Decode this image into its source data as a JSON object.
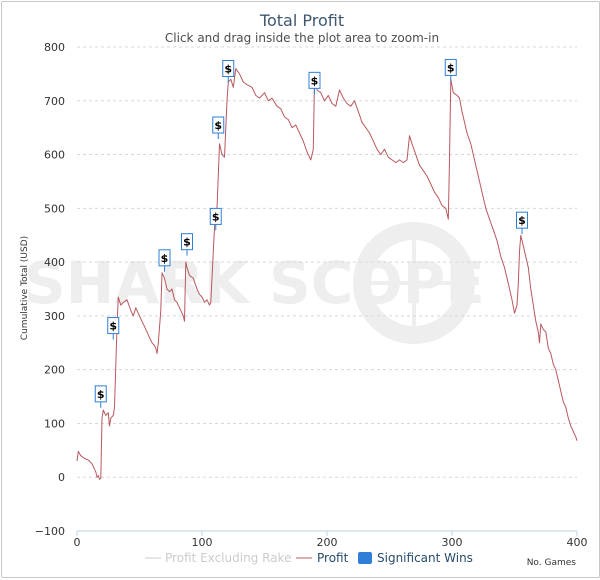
{
  "chart_data": {
    "type": "line",
    "title": "Total Profit",
    "subtitle": "Click and drag inside the plot area to zoom-in",
    "ylabel": "Cumulative Total (USD)",
    "xlabel": "No. Games",
    "xlim": [
      0,
      400
    ],
    "ylim": [
      -100,
      800
    ],
    "x_ticks": [
      "0",
      "100",
      "200",
      "300",
      "400"
    ],
    "y_ticks": [
      "−100",
      "0",
      "100",
      "200",
      "300",
      "400",
      "500",
      "600",
      "700",
      "800"
    ],
    "grid": "horizontal dashed",
    "legend_position": "bottom",
    "watermark": "SHARK SCOPE",
    "series": [
      {
        "name": "Profit Excluding Rake",
        "color": "#cccccc",
        "visible": false,
        "points": []
      },
      {
        "name": "Profit",
        "color": "#b9585d",
        "points": [
          [
            0,
            30
          ],
          [
            1,
            48
          ],
          [
            3,
            40
          ],
          [
            6,
            35
          ],
          [
            9,
            32
          ],
          [
            12,
            25
          ],
          [
            14,
            15
          ],
          [
            15,
            10
          ],
          [
            16,
            0
          ],
          [
            17,
            3
          ],
          [
            18,
            -4
          ],
          [
            19,
            -2
          ],
          [
            20,
            110
          ],
          [
            21,
            125
          ],
          [
            23,
            115
          ],
          [
            25,
            120
          ],
          [
            26,
            95
          ],
          [
            27,
            110
          ],
          [
            29,
            115
          ],
          [
            30,
            130
          ],
          [
            32,
            280
          ],
          [
            33,
            335
          ],
          [
            35,
            320
          ],
          [
            37,
            325
          ],
          [
            40,
            330
          ],
          [
            43,
            310
          ],
          [
            45,
            300
          ],
          [
            47,
            315
          ],
          [
            50,
            300
          ],
          [
            52,
            290
          ],
          [
            55,
            275
          ],
          [
            58,
            260
          ],
          [
            60,
            250
          ],
          [
            62,
            245
          ],
          [
            63,
            240
          ],
          [
            64,
            230
          ],
          [
            65,
            250
          ],
          [
            67,
            310
          ],
          [
            68,
            380
          ],
          [
            70,
            370
          ],
          [
            72,
            350
          ],
          [
            74,
            345
          ],
          [
            76,
            350
          ],
          [
            78,
            330
          ],
          [
            80,
            325
          ],
          [
            82,
            315
          ],
          [
            84,
            305
          ],
          [
            85,
            300
          ],
          [
            86,
            290
          ],
          [
            87,
            400
          ],
          [
            88,
            390
          ],
          [
            90,
            375
          ],
          [
            93,
            370
          ],
          [
            96,
            350
          ],
          [
            98,
            340
          ],
          [
            100,
            335
          ],
          [
            102,
            325
          ],
          [
            104,
            330
          ],
          [
            106,
            320
          ],
          [
            107,
            325
          ],
          [
            110,
            465
          ],
          [
            112,
            500
          ],
          [
            114,
            620
          ],
          [
            116,
            600
          ],
          [
            118,
            595
          ],
          [
            120,
            700
          ],
          [
            121,
            735
          ],
          [
            123,
            740
          ],
          [
            125,
            725
          ],
          [
            127,
            760
          ],
          [
            130,
            750
          ],
          [
            133,
            735
          ],
          [
            136,
            730
          ],
          [
            140,
            725
          ],
          [
            143,
            710
          ],
          [
            146,
            705
          ],
          [
            150,
            715
          ],
          [
            153,
            700
          ],
          [
            156,
            705
          ],
          [
            160,
            690
          ],
          [
            163,
            685
          ],
          [
            166,
            670
          ],
          [
            169,
            665
          ],
          [
            172,
            650
          ],
          [
            175,
            655
          ],
          [
            178,
            640
          ],
          [
            181,
            625
          ],
          [
            184,
            605
          ],
          [
            187,
            590
          ],
          [
            189,
            610
          ],
          [
            190,
            740
          ],
          [
            192,
            720
          ],
          [
            195,
            715
          ],
          [
            198,
            700
          ],
          [
            201,
            710
          ],
          [
            204,
            695
          ],
          [
            207,
            690
          ],
          [
            210,
            720
          ],
          [
            213,
            705
          ],
          [
            216,
            695
          ],
          [
            219,
            690
          ],
          [
            222,
            700
          ],
          [
            225,
            680
          ],
          [
            228,
            660
          ],
          [
            231,
            650
          ],
          [
            234,
            640
          ],
          [
            237,
            625
          ],
          [
            240,
            610
          ],
          [
            243,
            600
          ],
          [
            246,
            610
          ],
          [
            249,
            595
          ],
          [
            252,
            590
          ],
          [
            255,
            585
          ],
          [
            258,
            590
          ],
          [
            261,
            585
          ],
          [
            264,
            590
          ],
          [
            266,
            635
          ],
          [
            268,
            620
          ],
          [
            271,
            600
          ],
          [
            274,
            580
          ],
          [
            277,
            570
          ],
          [
            280,
            560
          ],
          [
            283,
            545
          ],
          [
            286,
            530
          ],
          [
            289,
            520
          ],
          [
            292,
            505
          ],
          [
            295,
            500
          ],
          [
            297,
            480
          ],
          [
            298,
            590
          ],
          [
            299,
            740
          ],
          [
            301,
            715
          ],
          [
            304,
            710
          ],
          [
            306,
            705
          ],
          [
            308,
            680
          ],
          [
            310,
            660
          ],
          [
            312,
            640
          ],
          [
            315,
            620
          ],
          [
            318,
            590
          ],
          [
            321,
            560
          ],
          [
            324,
            530
          ],
          [
            327,
            500
          ],
          [
            330,
            480
          ],
          [
            333,
            460
          ],
          [
            336,
            440
          ],
          [
            339,
            410
          ],
          [
            342,
            390
          ],
          [
            345,
            360
          ],
          [
            348,
            330
          ],
          [
            350,
            305
          ],
          [
            352,
            320
          ],
          [
            353,
            360
          ],
          [
            354,
            420
          ],
          [
            355,
            450
          ],
          [
            357,
            430
          ],
          [
            359,
            410
          ],
          [
            361,
            390
          ],
          [
            363,
            350
          ],
          [
            365,
            320
          ],
          [
            367,
            290
          ],
          [
            369,
            270
          ],
          [
            370,
            250
          ],
          [
            371,
            285
          ],
          [
            373,
            275
          ],
          [
            375,
            270
          ],
          [
            377,
            240
          ],
          [
            379,
            230
          ],
          [
            381,
            210
          ],
          [
            383,
            200
          ],
          [
            385,
            180
          ],
          [
            387,
            160
          ],
          [
            389,
            140
          ],
          [
            391,
            130
          ],
          [
            393,
            110
          ],
          [
            395,
            95
          ],
          [
            397,
            85
          ],
          [
            398,
            80
          ],
          [
            399,
            75
          ],
          [
            400,
            68
          ]
        ]
      }
    ],
    "significant_wins": {
      "name": "Significant Wins",
      "color": "#2f7ed8",
      "symbol": "$",
      "points": [
        {
          "x": 19,
          "y": 155
        },
        {
          "x": 29,
          "y": 282
        },
        {
          "x": 70,
          "y": 408
        },
        {
          "x": 88,
          "y": 438
        },
        {
          "x": 111,
          "y": 485
        },
        {
          "x": 113,
          "y": 655
        },
        {
          "x": 121,
          "y": 760
        },
        {
          "x": 190,
          "y": 738
        },
        {
          "x": 299,
          "y": 762
        },
        {
          "x": 356,
          "y": 478
        }
      ]
    }
  }
}
